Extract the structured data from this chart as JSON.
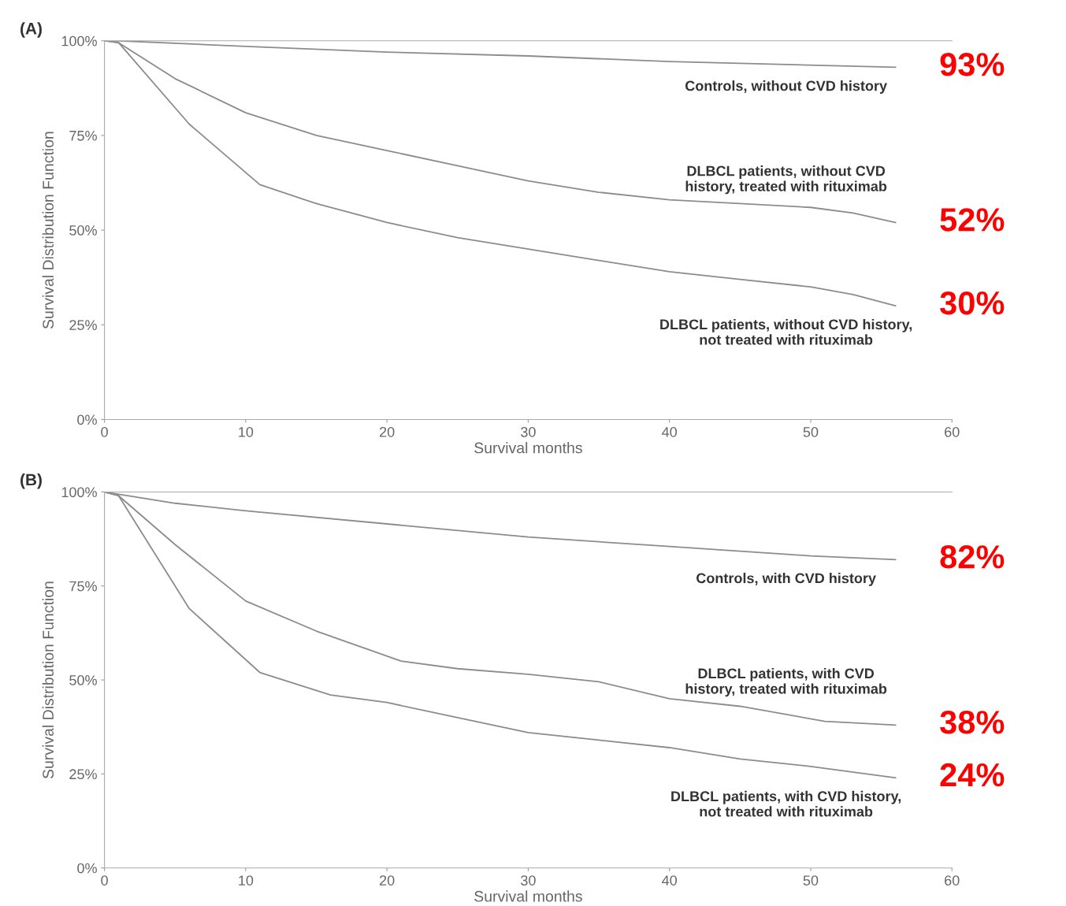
{
  "chart_data": [
    {
      "type": "line",
      "title": "(A)",
      "xlabel": "Survival months",
      "ylabel": "Survival Distribution Function",
      "xlim": [
        0,
        60
      ],
      "ylim": [
        0,
        100
      ],
      "xticks": [
        0,
        10,
        20,
        30,
        40,
        50,
        60
      ],
      "yticks": [
        {
          "value": 0,
          "label": "0%"
        },
        {
          "value": 25,
          "label": "25%"
        },
        {
          "value": 50,
          "label": "50%"
        },
        {
          "value": 75,
          "label": "75%"
        },
        {
          "value": 100,
          "label": "100%"
        }
      ],
      "grid": false,
      "legend": false,
      "marker": "none",
      "line_style": "solid",
      "series": [
        {
          "name": "Controls, without CVD history",
          "color": "#8c8c8c",
          "x": [
            0,
            1,
            10,
            20,
            30,
            40,
            56
          ],
          "values": [
            100,
            100,
            98.5,
            97,
            96,
            94.5,
            93
          ]
        },
        {
          "name": "DLBCL patients, without CVD\nhistory, treated with rituximab",
          "color": "#8c8c8c",
          "x": [
            0,
            1,
            5,
            10,
            15,
            20,
            25,
            30,
            35,
            40,
            45,
            50,
            53,
            56
          ],
          "values": [
            100,
            99.5,
            90,
            81,
            75,
            71,
            67,
            63,
            60,
            58,
            57,
            56,
            54.5,
            52
          ]
        },
        {
          "name": "DLBCL patients, without CVD history,\nnot treated with rituximab",
          "color": "#8c8c8c",
          "x": [
            0,
            1,
            6,
            11,
            15,
            20,
            25,
            30,
            35,
            40,
            45,
            50,
            53,
            56
          ],
          "values": [
            100,
            99.5,
            78,
            62,
            57,
            52,
            48,
            45,
            42,
            39,
            37,
            35,
            33,
            30
          ]
        }
      ],
      "annotations": [
        "93%",
        "52%",
        "30%"
      ]
    },
    {
      "type": "line",
      "title": "(B)",
      "xlabel": "Survival months",
      "ylabel": "Survival Distribution Function",
      "xlim": [
        0,
        60
      ],
      "ylim": [
        0,
        100
      ],
      "xticks": [
        0,
        10,
        20,
        30,
        40,
        50,
        60
      ],
      "yticks": [
        {
          "value": 0,
          "label": "0%"
        },
        {
          "value": 25,
          "label": "25%"
        },
        {
          "value": 50,
          "label": "50%"
        },
        {
          "value": 75,
          "label": "75%"
        },
        {
          "value": 100,
          "label": "100%"
        }
      ],
      "grid": false,
      "legend": false,
      "marker": "none",
      "line_style": "solid",
      "series": [
        {
          "name": "Controls, with CVD history",
          "color": "#8c8c8c",
          "x": [
            0,
            5,
            10,
            20,
            30,
            40,
            50,
            56
          ],
          "values": [
            100,
            97,
            95,
            91.5,
            88,
            85.5,
            83,
            82
          ]
        },
        {
          "name": "DLBCL patients, with CVD\nhistory, treated with rituximab",
          "color": "#8c8c8c",
          "x": [
            0,
            1,
            5,
            10,
            15,
            21,
            25,
            30,
            35,
            40,
            45,
            51,
            56
          ],
          "values": [
            100,
            99,
            86,
            71,
            63,
            55,
            53,
            51.5,
            49.5,
            45,
            43,
            39,
            38
          ]
        },
        {
          "name": "DLBCL patients, with CVD history,\nnot treated with rituximab",
          "color": "#8c8c8c",
          "x": [
            0,
            1,
            6,
            11,
            16,
            20,
            25,
            30,
            35,
            40,
            45,
            50,
            56
          ],
          "values": [
            100,
            99,
            69,
            52,
            46,
            44,
            40,
            36,
            34,
            32,
            29,
            27,
            24
          ]
        }
      ],
      "annotations": [
        "82%",
        "38%",
        "24%"
      ]
    }
  ]
}
